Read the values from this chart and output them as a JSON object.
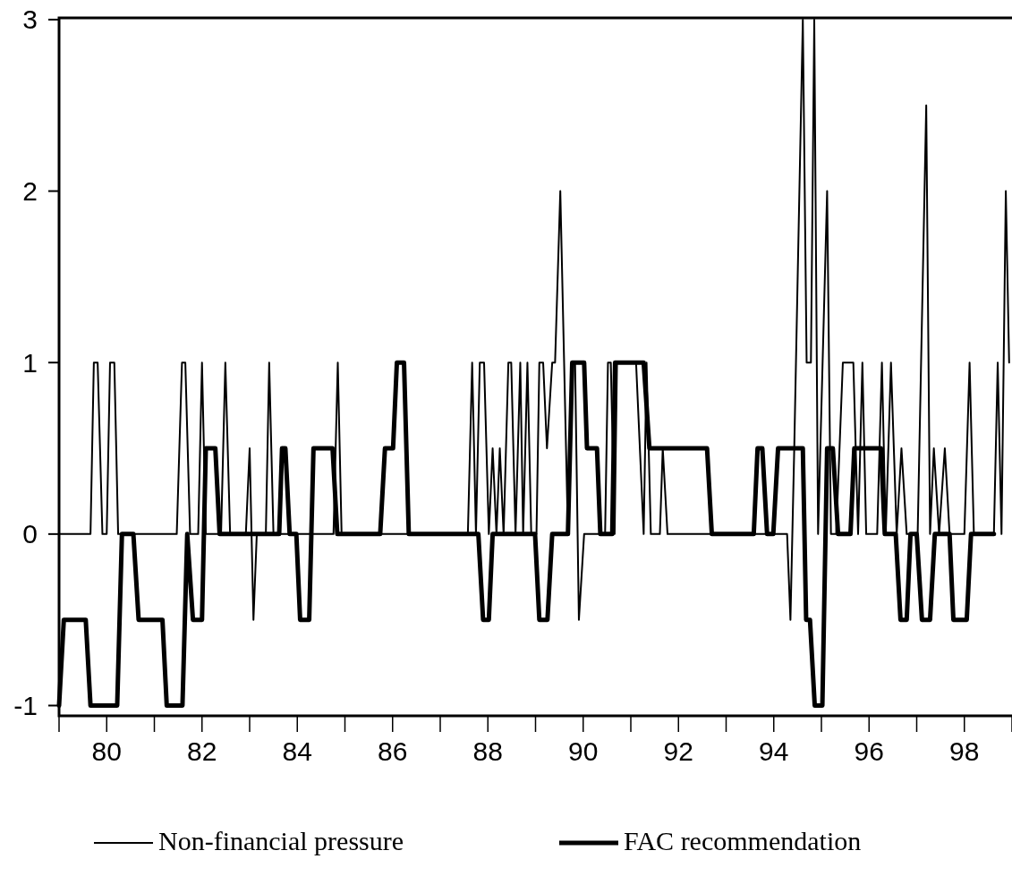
{
  "chart_data": {
    "type": "line",
    "legend": "bottom",
    "grid": false,
    "line_style": "solid",
    "xlim": [
      79,
      99
    ],
    "ylim": [
      -1.06,
      3.01
    ],
    "yticks": [
      -1,
      0,
      1,
      2,
      3
    ],
    "xticks": [
      80,
      82,
      84,
      86,
      88,
      90,
      92,
      94,
      96,
      98
    ],
    "series": [
      {
        "name": "Non-financial pressure",
        "color": "#000000",
        "x": [
          79.0,
          79.66,
          79.73,
          79.81,
          79.91,
          80.0,
          80.07,
          80.16,
          80.24,
          81.47,
          81.58,
          81.65,
          81.75,
          81.92,
          82.0,
          82.08,
          82.4,
          82.49,
          82.59,
          82.92,
          83.0,
          83.08,
          83.15,
          83.34,
          83.41,
          83.5,
          84.76,
          84.85,
          84.93,
          87.58,
          87.67,
          87.75,
          87.83,
          87.92,
          88.02,
          88.1,
          88.18,
          88.25,
          88.33,
          88.43,
          88.49,
          88.58,
          88.68,
          88.74,
          88.83,
          88.91,
          89.02,
          89.08,
          89.16,
          89.24,
          89.35,
          89.41,
          89.52,
          89.68,
          89.77,
          89.83,
          89.91,
          90.02,
          90.46,
          90.52,
          90.58,
          90.66,
          90.71,
          91.11,
          91.27,
          91.33,
          91.42,
          91.61,
          91.67,
          91.77,
          94.28,
          94.35,
          94.43,
          94.61,
          94.69,
          94.78,
          94.85,
          94.93,
          95.12,
          95.2,
          95.31,
          95.45,
          95.67,
          95.77,
          95.86,
          95.94,
          96.17,
          96.27,
          96.35,
          96.46,
          96.58,
          96.68,
          96.79,
          97.02,
          97.2,
          97.28,
          97.36,
          97.47,
          97.59,
          97.69,
          98.0,
          98.11,
          98.2,
          98.62,
          98.7,
          98.78,
          98.87,
          98.94
        ],
        "values": [
          0,
          0,
          1,
          1,
          0,
          0,
          1,
          1,
          0,
          0,
          1,
          1,
          0,
          0,
          1,
          0,
          0,
          1,
          0,
          0,
          0.5,
          -0.5,
          0,
          0,
          1,
          0,
          0,
          1,
          0,
          0,
          1,
          0,
          1,
          1,
          0,
          0.5,
          0,
          0.5,
          0,
          1,
          1,
          0,
          1,
          0,
          1,
          0,
          0,
          1,
          1,
          0.5,
          1,
          1,
          2,
          0,
          1,
          1,
          -0.5,
          0,
          0,
          1,
          1,
          0,
          1,
          1,
          0,
          1,
          0,
          0,
          0.5,
          0,
          0,
          -0.5,
          0.5,
          3,
          1,
          1,
          3,
          0,
          2,
          0,
          0,
          1,
          1,
          0,
          1,
          0,
          0,
          1,
          0,
          1,
          0,
          0.5,
          0,
          0,
          2.5,
          0,
          0.5,
          0,
          0.5,
          0,
          0,
          1,
          0,
          0,
          1,
          0,
          2,
          1
        ]
      },
      {
        "name": "FAC recommendation",
        "color": "#000000",
        "x": [
          79.0,
          79.1,
          79.56,
          79.66,
          80.22,
          80.32,
          80.56,
          80.67,
          81.17,
          81.26,
          81.59,
          81.69,
          81.81,
          82.0,
          82.08,
          82.28,
          82.37,
          83.62,
          83.68,
          83.75,
          83.84,
          83.98,
          84.06,
          84.25,
          84.34,
          84.74,
          84.84,
          85.74,
          85.84,
          86.01,
          86.09,
          86.24,
          86.34,
          87.8,
          87.9,
          88.02,
          88.1,
          88.99,
          89.08,
          89.25,
          89.35,
          89.68,
          89.77,
          90.02,
          90.08,
          90.29,
          90.36,
          90.61,
          90.67,
          91.27,
          91.39,
          92.6,
          92.7,
          93.58,
          93.66,
          93.76,
          93.86,
          93.99,
          94.09,
          94.61,
          94.68,
          94.76,
          94.86,
          95.02,
          95.12,
          95.24,
          95.35,
          95.61,
          95.69,
          96.25,
          96.33,
          96.56,
          96.66,
          96.79,
          96.87,
          97.0,
          97.11,
          97.28,
          97.38,
          97.69,
          97.77,
          98.05,
          98.14,
          98.62
        ],
        "values": [
          -1,
          -0.5,
          -0.5,
          -1,
          -1,
          0,
          0,
          -0.5,
          -0.5,
          -1,
          -1,
          0,
          -0.5,
          -0.5,
          0.5,
          0.5,
          0,
          0,
          0.5,
          0.5,
          0,
          0,
          -0.5,
          -0.5,
          0.5,
          0.5,
          0,
          0,
          0.5,
          0.5,
          1,
          1,
          0,
          0,
          -0.5,
          -0.5,
          0,
          0,
          -0.5,
          -0.5,
          0,
          0,
          1,
          1,
          0.5,
          0.5,
          0,
          0,
          1,
          1,
          0.5,
          0.5,
          0,
          0,
          0.5,
          0.5,
          0,
          0,
          0.5,
          0.5,
          -0.5,
          -0.5,
          -1,
          -1,
          0.5,
          0.5,
          0,
          0,
          0.5,
          0.5,
          0,
          0,
          -0.5,
          -0.5,
          0,
          0,
          -0.5,
          -0.5,
          0,
          0,
          -0.5,
          -0.5,
          0,
          0
        ]
      }
    ]
  }
}
